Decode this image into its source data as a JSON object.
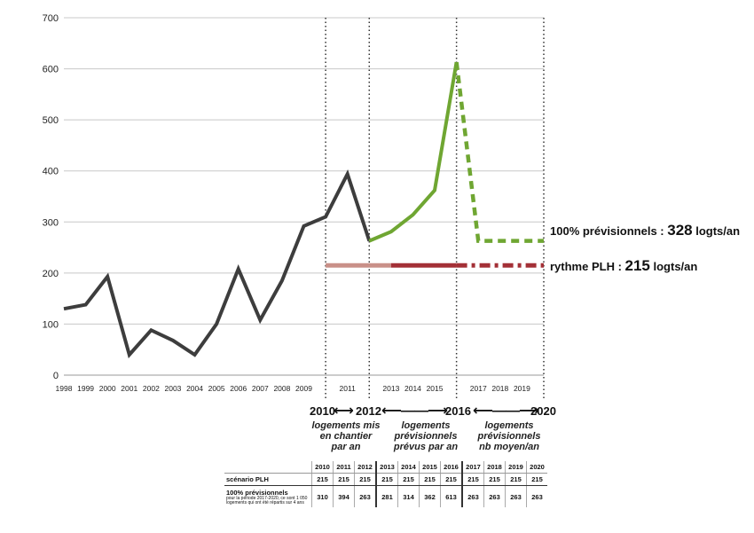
{
  "chart_data": {
    "type": "line",
    "ylim": [
      0,
      700
    ],
    "yticks": [
      0,
      100,
      200,
      300,
      400,
      500,
      600,
      700
    ],
    "x_range": [
      1998,
      2020
    ],
    "x_tick_labels": [
      "1998",
      "1999",
      "2000",
      "2001",
      "2002",
      "2003",
      "2004",
      "2005",
      "2006",
      "2007",
      "2008",
      "2009",
      "2011",
      "2013",
      "2014",
      "2015",
      "2017",
      "2018",
      "2019"
    ],
    "grid": true,
    "series": [
      {
        "style": "solid-dark-gray",
        "x": [
          1998,
          1999,
          2000,
          2001,
          2002,
          2003,
          2004,
          2005,
          2006,
          2007,
          2008,
          2009,
          2010,
          2011,
          2012
        ],
        "y": [
          130,
          138,
          193,
          40,
          88,
          68,
          40,
          100,
          208,
          108,
          185,
          292,
          310,
          394,
          263
        ]
      },
      {
        "style": "solid-green",
        "x": [
          2012,
          2013,
          2014,
          2015,
          2016
        ],
        "y": [
          263,
          281,
          314,
          362,
          613
        ]
      },
      {
        "style": "dashed-green",
        "x": [
          2016,
          2017,
          2018,
          2019,
          2020
        ],
        "y": [
          613,
          263,
          263,
          263,
          263
        ]
      },
      {
        "style": "solid-light-brown",
        "x": [
          2010,
          2013
        ],
        "y": [
          215,
          215
        ]
      },
      {
        "style": "solid-dark-red",
        "x": [
          2013,
          2016
        ],
        "y": [
          215,
          215
        ]
      },
      {
        "style": "dashdot-dark-red",
        "x": [
          2016,
          2020
        ],
        "y": [
          215,
          215
        ]
      }
    ],
    "vlines": [
      2010,
      2012,
      2016,
      2020
    ],
    "annotations": [
      {
        "text_prefix": "100% prévisionnels : ",
        "value": "328",
        "text_suffix": " logts/an"
      },
      {
        "text_prefix": "rythme PLH : ",
        "value": "215",
        "text_suffix": " logts/an"
      }
    ]
  },
  "periods": {
    "p1_start": "2010",
    "p1_end": "2012",
    "p2_end": "2016",
    "p3_end": "2020",
    "arrow": "⟷",
    "desc1": [
      "logements mis",
      "en chantier",
      "par an"
    ],
    "desc2": [
      "logements",
      "prévisionnels",
      "prévus par an"
    ],
    "desc3": [
      "logements",
      "prévisionnels",
      "nb moyen/an"
    ]
  },
  "table": {
    "row1_label": "scénario PLH",
    "row2_label": "100% prévisionnels",
    "row2_sub": "pour la période 2017-2020, ce sont 1 050 logements qui ont été répartis sur 4 ans",
    "years": [
      "2010",
      "2011",
      "2012",
      "2013",
      "2014",
      "2015",
      "2016",
      "2017",
      "2018",
      "2019",
      "2020"
    ],
    "plh": [
      "215",
      "215",
      "215",
      "215",
      "215",
      "215",
      "215",
      "215",
      "215",
      "215",
      "215"
    ],
    "prev": [
      "310",
      "394",
      "263",
      "281",
      "314",
      "362",
      "613",
      "263",
      "263",
      "263",
      "263"
    ]
  },
  "colors": {
    "dark_gray": "#3d3d3d",
    "green": "#6fa632",
    "light_brown": "#c99088",
    "dark_red": "#a33036",
    "grid": "#c8c8c8"
  }
}
